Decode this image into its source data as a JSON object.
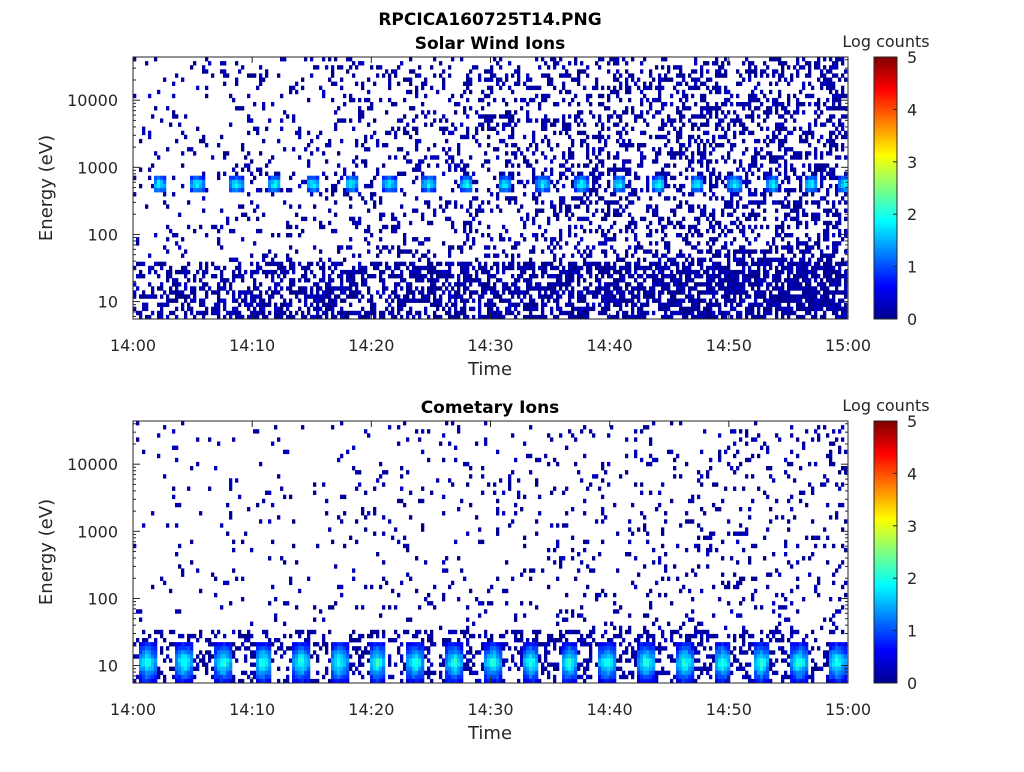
{
  "figure": {
    "filename": "RPCICA160725T14.PNG"
  },
  "colorbar": {
    "label": "Log counts",
    "ticks": [
      "0",
      "1",
      "2",
      "3",
      "4",
      "5"
    ],
    "min": 0,
    "max": 5,
    "colormap": "jet"
  },
  "chart_data": [
    {
      "type": "heatmap",
      "title": "Solar Wind Ions",
      "xlabel": "Time",
      "ylabel": "Energy (eV)",
      "x_ticks": [
        "14:00",
        "14:10",
        "14:20",
        "14:30",
        "14:40",
        "14:50",
        "15:00"
      ],
      "x_range": [
        "14:00",
        "15:00"
      ],
      "y_scale": "log",
      "y_ticks": [
        "10",
        "100",
        "1000",
        "10000"
      ],
      "y_range": [
        5.5,
        44000
      ],
      "z_label": "Log counts",
      "z_range": [
        0,
        5
      ],
      "sweep_times_min": [
        2.2,
        5.4,
        8.7,
        11.9,
        15.1,
        18.3,
        21.5,
        24.8,
        28.0,
        31.2,
        34.4,
        37.6,
        40.8,
        44.1,
        47.3,
        50.5,
        53.7,
        56.9,
        59.8
      ],
      "peak_energy_eV": 560,
      "peak_log_counts": 2.0,
      "notes": "Sparse noise 0-1 log counts throughout; banded solar wind peak near 400-800 eV each sweep"
    },
    {
      "type": "heatmap",
      "title": "Cometary Ions",
      "xlabel": "Time",
      "ylabel": "Energy (eV)",
      "x_ticks": [
        "14:00",
        "14:10",
        "14:20",
        "14:30",
        "14:40",
        "14:50",
        "15:00"
      ],
      "x_range": [
        "14:00",
        "15:00"
      ],
      "y_scale": "log",
      "y_ticks": [
        "10",
        "100",
        "1000",
        "10000"
      ],
      "y_range": [
        5.5,
        44000
      ],
      "z_label": "Log counts",
      "z_range": [
        0,
        5
      ],
      "sweep_times_min": [
        1.2,
        4.3,
        7.6,
        10.9,
        14.1,
        17.3,
        20.5,
        23.7,
        27.0,
        30.2,
        33.4,
        36.6,
        39.8,
        43.1,
        46.3,
        49.5,
        52.7,
        55.9,
        59.1
      ],
      "peak_energy_eV": 11,
      "peak_log_counts": 2.1,
      "notes": "Low-energy cometary ions (5-30 eV) peaking each sweep; sparse noise at higher energies"
    }
  ]
}
